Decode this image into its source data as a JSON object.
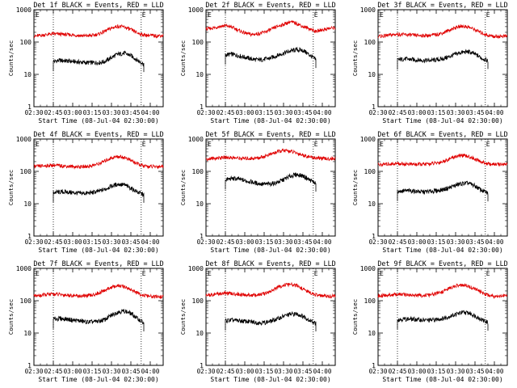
{
  "figure": {
    "xlabel": "Start Time (08-Jul-04 02:30:00)",
    "ylabel": "Counts/sec",
    "x_ticks": [
      "02:30",
      "02:45",
      "03:00",
      "03:15",
      "03:30",
      "03:45",
      "04:00"
    ],
    "y_ticks": [
      "1",
      "10",
      "100",
      "1000"
    ],
    "marker_label": "E",
    "colors": {
      "events": "#000000",
      "lld": "#e00000",
      "axes": "#000000",
      "marker_line": "#000000"
    }
  },
  "chart_data": [
    {
      "type": "line",
      "title": "Det 1f BLACK = Events, RED = LLD",
      "x_unit": "minutes after 02:30",
      "xlim": [
        0,
        100
      ],
      "ylim": [
        1,
        1000
      ],
      "yscale": "log",
      "markers_x": [
        15,
        83
      ],
      "series": [
        {
          "name": "Events",
          "color": "#000000",
          "x": [
            15,
            20,
            25,
            30,
            35,
            40,
            45,
            50,
            55,
            60,
            65,
            70,
            75,
            80,
            85
          ],
          "values": [
            25,
            27,
            26,
            25,
            24,
            23,
            23,
            23,
            25,
            33,
            42,
            45,
            38,
            27,
            21
          ]
        },
        {
          "name": "LLD",
          "color": "#e00000",
          "x": [
            0,
            5,
            10,
            15,
            20,
            25,
            30,
            35,
            40,
            45,
            50,
            55,
            60,
            65,
            70,
            75,
            80,
            85,
            90,
            95,
            100
          ],
          "values": [
            150,
            160,
            170,
            180,
            175,
            170,
            165,
            160,
            155,
            160,
            175,
            215,
            270,
            310,
            290,
            240,
            190,
            165,
            160,
            155,
            160
          ]
        }
      ]
    },
    {
      "type": "line",
      "title": "Det 2f BLACK = Events, RED = LLD",
      "x_unit": "minutes after 02:30",
      "xlim": [
        0,
        100
      ],
      "ylim": [
        1,
        1000
      ],
      "yscale": "log",
      "markers_x": [
        15,
        83
      ],
      "series": [
        {
          "name": "Events",
          "color": "#000000",
          "x": [
            15,
            20,
            25,
            30,
            35,
            40,
            45,
            50,
            55,
            60,
            65,
            70,
            75,
            80,
            85
          ],
          "values": [
            40,
            42,
            38,
            34,
            30,
            28,
            29,
            32,
            38,
            45,
            52,
            58,
            55,
            40,
            28
          ]
        },
        {
          "name": "LLD",
          "color": "#e00000",
          "x": [
            0,
            5,
            10,
            15,
            20,
            25,
            30,
            35,
            40,
            45,
            50,
            55,
            60,
            65,
            70,
            75,
            80,
            85,
            90,
            95,
            100
          ],
          "values": [
            250,
            270,
            300,
            320,
            290,
            230,
            190,
            170,
            180,
            200,
            240,
            300,
            350,
            420,
            380,
            300,
            260,
            210,
            240,
            260,
            280
          ]
        }
      ]
    },
    {
      "type": "line",
      "title": "Det 3f BLACK = Events, RED = LLD",
      "x_unit": "minutes after 02:30",
      "xlim": [
        0,
        100
      ],
      "ylim": [
        1,
        1000
      ],
      "yscale": "log",
      "markers_x": [
        15,
        83
      ],
      "series": [
        {
          "name": "Events",
          "color": "#000000",
          "x": [
            15,
            20,
            25,
            30,
            35,
            40,
            45,
            50,
            55,
            60,
            65,
            70,
            75,
            80,
            85
          ],
          "values": [
            28,
            30,
            29,
            28,
            27,
            27,
            28,
            30,
            35,
            42,
            48,
            50,
            42,
            32,
            26
          ]
        },
        {
          "name": "LLD",
          "color": "#e00000",
          "x": [
            0,
            5,
            10,
            15,
            20,
            25,
            30,
            35,
            40,
            45,
            50,
            55,
            60,
            65,
            70,
            75,
            80,
            85,
            90,
            95,
            100
          ],
          "values": [
            150,
            155,
            165,
            175,
            170,
            165,
            160,
            158,
            160,
            170,
            190,
            230,
            280,
            310,
            290,
            240,
            190,
            160,
            150,
            150,
            155
          ]
        }
      ]
    },
    {
      "type": "line",
      "title": "Det 4f BLACK = Events, RED = LLD",
      "x_unit": "minutes after 02:30",
      "xlim": [
        0,
        100
      ],
      "ylim": [
        1,
        1000
      ],
      "yscale": "log",
      "markers_x": [
        15,
        83
      ],
      "series": [
        {
          "name": "Events",
          "color": "#000000",
          "x": [
            15,
            20,
            25,
            30,
            35,
            40,
            45,
            50,
            55,
            60,
            65,
            70,
            75,
            80,
            85
          ],
          "values": [
            22,
            23,
            23,
            22,
            21,
            21,
            22,
            24,
            28,
            35,
            40,
            38,
            30,
            23,
            19
          ]
        },
        {
          "name": "LLD",
          "color": "#e00000",
          "x": [
            0,
            5,
            10,
            15,
            20,
            25,
            30,
            35,
            40,
            45,
            50,
            55,
            60,
            65,
            70,
            75,
            80,
            85,
            90,
            95,
            100
          ],
          "values": [
            140,
            145,
            150,
            155,
            150,
            145,
            140,
            138,
            140,
            150,
            170,
            210,
            260,
            290,
            270,
            220,
            170,
            145,
            140,
            140,
            145
          ]
        }
      ]
    },
    {
      "type": "line",
      "title": "Det 5f BLACK = Events, RED = LLD",
      "x_unit": "minutes after 02:30",
      "xlim": [
        0,
        100
      ],
      "ylim": [
        1,
        1000
      ],
      "yscale": "log",
      "markers_x": [
        15,
        83
      ],
      "series": [
        {
          "name": "Events",
          "color": "#000000",
          "x": [
            15,
            20,
            25,
            30,
            35,
            40,
            45,
            50,
            55,
            60,
            65,
            70,
            75,
            80,
            85
          ],
          "values": [
            55,
            60,
            58,
            52,
            47,
            42,
            40,
            41,
            45,
            55,
            70,
            80,
            72,
            55,
            42
          ]
        },
        {
          "name": "LLD",
          "color": "#e00000",
          "x": [
            0,
            5,
            10,
            15,
            20,
            25,
            30,
            35,
            40,
            45,
            50,
            55,
            60,
            65,
            70,
            75,
            80,
            85,
            90,
            95,
            100
          ],
          "values": [
            240,
            250,
            260,
            270,
            265,
            255,
            250,
            250,
            260,
            290,
            340,
            400,
            440,
            420,
            370,
            320,
            280,
            260,
            250,
            245,
            250
          ]
        }
      ]
    },
    {
      "type": "line",
      "title": "Det 6f BLACK = Events, RED = LLD",
      "x_unit": "minutes after 02:30",
      "xlim": [
        0,
        100
      ],
      "ylim": [
        1,
        1000
      ],
      "yscale": "log",
      "markers_x": [
        15,
        83
      ],
      "series": [
        {
          "name": "Events",
          "color": "#000000",
          "x": [
            15,
            20,
            25,
            30,
            35,
            40,
            45,
            50,
            55,
            60,
            65,
            70,
            75,
            80,
            85
          ],
          "values": [
            24,
            25,
            25,
            24,
            23,
            24,
            25,
            27,
            31,
            37,
            42,
            43,
            35,
            26,
            21
          ]
        },
        {
          "name": "LLD",
          "color": "#e00000",
          "x": [
            0,
            5,
            10,
            15,
            20,
            25,
            30,
            35,
            40,
            45,
            50,
            55,
            60,
            65,
            70,
            75,
            80,
            85,
            90,
            95,
            100
          ],
          "values": [
            160,
            165,
            170,
            175,
            170,
            168,
            165,
            165,
            170,
            180,
            200,
            240,
            290,
            310,
            290,
            240,
            195,
            170,
            165,
            165,
            170
          ]
        }
      ]
    },
    {
      "type": "line",
      "title": "Det 7f BLACK = Events, RED = LLD",
      "x_unit": "minutes after 02:30",
      "xlim": [
        0,
        100
      ],
      "ylim": [
        1,
        1000
      ],
      "yscale": "log",
      "markers_x": [
        15,
        83
      ],
      "series": [
        {
          "name": "Events",
          "color": "#000000",
          "x": [
            15,
            20,
            25,
            30,
            35,
            40,
            45,
            50,
            55,
            60,
            65,
            70,
            75,
            80,
            85
          ],
          "values": [
            27,
            28,
            27,
            25,
            24,
            22,
            22,
            23,
            26,
            35,
            45,
            48,
            40,
            28,
            20
          ]
        },
        {
          "name": "LLD",
          "color": "#e00000",
          "x": [
            0,
            5,
            10,
            15,
            20,
            25,
            30,
            35,
            40,
            45,
            50,
            55,
            60,
            65,
            70,
            75,
            80,
            85,
            90,
            95,
            100
          ],
          "values": [
            140,
            145,
            155,
            160,
            155,
            150,
            145,
            140,
            140,
            150,
            170,
            210,
            260,
            290,
            270,
            220,
            170,
            145,
            135,
            130,
            135
          ]
        }
      ]
    },
    {
      "type": "line",
      "title": "Det 8f BLACK = Events, RED = LLD",
      "x_unit": "minutes after 02:30",
      "xlim": [
        0,
        100
      ],
      "ylim": [
        1,
        1000
      ],
      "yscale": "log",
      "markers_x": [
        15,
        83
      ],
      "series": [
        {
          "name": "Events",
          "color": "#000000",
          "x": [
            15,
            20,
            25,
            30,
            35,
            40,
            45,
            50,
            55,
            60,
            65,
            70,
            75,
            80,
            85
          ],
          "values": [
            24,
            25,
            24,
            23,
            22,
            21,
            21,
            23,
            27,
            33,
            38,
            39,
            33,
            25,
            20
          ]
        },
        {
          "name": "LLD",
          "color": "#e00000",
          "x": [
            0,
            5,
            10,
            15,
            20,
            25,
            30,
            35,
            40,
            45,
            50,
            55,
            60,
            65,
            70,
            75,
            80,
            85,
            90,
            95,
            100
          ],
          "values": [
            150,
            155,
            165,
            170,
            165,
            158,
            150,
            148,
            150,
            165,
            195,
            250,
            300,
            320,
            290,
            230,
            180,
            150,
            140,
            138,
            140
          ]
        }
      ]
    },
    {
      "type": "line",
      "title": "Det 9f BLACK = Events, RED = LLD",
      "x_unit": "minutes after 02:30",
      "xlim": [
        0,
        100
      ],
      "ylim": [
        1,
        1000
      ],
      "yscale": "log",
      "markers_x": [
        15,
        83
      ],
      "series": [
        {
          "name": "Events",
          "color": "#000000",
          "x": [
            15,
            20,
            25,
            30,
            35,
            40,
            45,
            50,
            55,
            60,
            65,
            70,
            75,
            80,
            85
          ],
          "values": [
            26,
            27,
            27,
            26,
            25,
            25,
            26,
            28,
            32,
            38,
            43,
            42,
            34,
            26,
            21
          ]
        },
        {
          "name": "LLD",
          "color": "#e00000",
          "x": [
            0,
            5,
            10,
            15,
            20,
            25,
            30,
            35,
            40,
            45,
            50,
            55,
            60,
            65,
            70,
            75,
            80,
            85,
            90,
            95,
            100
          ],
          "values": [
            140,
            145,
            150,
            158,
            155,
            150,
            145,
            145,
            150,
            165,
            190,
            240,
            285,
            300,
            280,
            230,
            180,
            150,
            140,
            140,
            145
          ]
        }
      ]
    }
  ]
}
